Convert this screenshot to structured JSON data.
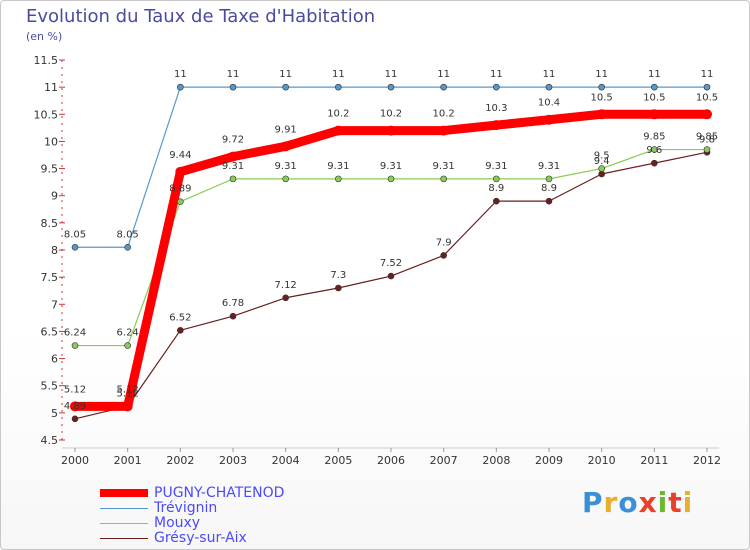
{
  "title": "Evolution du Taux de Taxe d'Habitation",
  "unit_label": "(en %)",
  "logo": {
    "text": "Proxiti",
    "colors": [
      "#3a8fd6",
      "#e8b02a",
      "#3a8fd6",
      "#e8402a",
      "#6ab82e",
      "#e8402a",
      "#e8b02a"
    ]
  },
  "chart_data": {
    "type": "line",
    "title": "Evolution du Taux de Taxe d'Habitation",
    "ylabel": "(en %)",
    "xlabel": "",
    "categories": [
      "2000",
      "2001",
      "2002",
      "2003",
      "2004",
      "2005",
      "2006",
      "2007",
      "2008",
      "2009",
      "2010",
      "2011",
      "2012"
    ],
    "ylim": [
      4.5,
      11.5
    ],
    "yticks": [
      "4.5",
      "5",
      "5.5",
      "6",
      "6.5",
      "7",
      "7.5",
      "8",
      "8.5",
      "9",
      "9.5",
      "10",
      "10.5",
      "11",
      "11.5"
    ],
    "grid": false,
    "legend_position": "bottom-left",
    "series": [
      {
        "name": "PUGNY-CHATENOD",
        "color": "#ff0000",
        "values": [
          5.12,
          5.12,
          9.44,
          9.72,
          9.91,
          10.2,
          10.2,
          10.2,
          10.3,
          10.4,
          10.5,
          10.5,
          10.5
        ],
        "labels": [
          "5.12",
          "5.12",
          "9.44",
          "9.72",
          "9.91",
          "10.2",
          "10.2",
          "10.2",
          "10.3",
          "10.4",
          "10.5",
          "10.5",
          "10.5"
        ]
      },
      {
        "name": "Trévignin",
        "color": "#5599cc",
        "values": [
          8.05,
          8.05,
          11,
          11,
          11,
          11,
          11,
          11,
          11,
          11,
          11,
          11,
          11
        ],
        "labels": [
          "8.05",
          "8.05",
          "11",
          "11",
          "11",
          "11",
          "11",
          "11",
          "11",
          "11",
          "11",
          "11",
          "11"
        ]
      },
      {
        "name": "Mouxy",
        "color": "#88cc55",
        "values": [
          6.24,
          6.24,
          8.89,
          9.31,
          9.31,
          9.31,
          9.31,
          9.31,
          9.31,
          9.31,
          9.5,
          9.85,
          9.85
        ],
        "labels": [
          "6.24",
          "6.24",
          "8.89",
          "9.31",
          "9.31",
          "9.31",
          "9.31",
          "9.31",
          "9.31",
          "9.31",
          "9.5",
          "9.85",
          "9.85"
        ]
      },
      {
        "name": "Grésy-sur-Aix",
        "color": "#6b1e1e",
        "values": [
          4.89,
          5.12,
          6.52,
          6.78,
          7.12,
          7.3,
          7.52,
          7.9,
          8.9,
          8.9,
          9.4,
          9.6,
          9.8
        ],
        "labels": [
          "4.89",
          "5.12",
          "6.52",
          "6.78",
          "7.12",
          "7.3",
          "7.52",
          "7.9",
          "8.9",
          "8.9",
          "9.4",
          "9.6",
          "9.8"
        ]
      }
    ]
  }
}
